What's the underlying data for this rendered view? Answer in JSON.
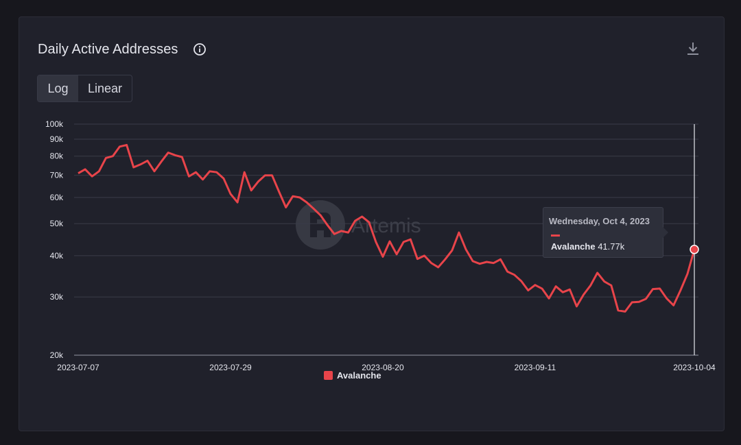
{
  "header": {
    "title": "Daily Active Addresses",
    "info_icon": "info-circle-icon",
    "download_icon": "download-icon"
  },
  "scale_toggle": {
    "options": [
      "Log",
      "Linear"
    ],
    "selected": "Log"
  },
  "watermark": "Artemis",
  "tooltip": {
    "date": "Wednesday, Oct 4, 2023",
    "series_name": "Avalanche",
    "value_text": "41.77k"
  },
  "colors": {
    "series": "#e8444a",
    "background": "#20212b",
    "grid": "#3a3c48"
  },
  "chart_data": {
    "type": "line",
    "title": "Daily Active Addresses",
    "yscale": "log",
    "ylim": [
      20000,
      100000
    ],
    "y_ticks": [
      {
        "value": 100000,
        "label": "100k"
      },
      {
        "value": 90000,
        "label": "90k"
      },
      {
        "value": 80000,
        "label": "80k"
      },
      {
        "value": 70000,
        "label": "70k"
      },
      {
        "value": 60000,
        "label": "60k"
      },
      {
        "value": 50000,
        "label": "50k"
      },
      {
        "value": 40000,
        "label": "40k"
      },
      {
        "value": 30000,
        "label": "30k"
      },
      {
        "value": 20000,
        "label": "20k"
      }
    ],
    "x_start": "2023-07-07",
    "x_end": "2023-10-04",
    "x_ticks": [
      "2023-07-07",
      "2023-07-29",
      "2023-08-20",
      "2023-09-11",
      "2023-10-04"
    ],
    "grid": true,
    "legend_position": "bottom-center",
    "highlight_index": 89,
    "series": [
      {
        "name": "Avalanche",
        "color": "#e8444a",
        "values": [
          71000,
          73000,
          69500,
          72000,
          79000,
          80000,
          85500,
          86500,
          74000,
          75500,
          77500,
          72000,
          77000,
          82000,
          80500,
          79500,
          69500,
          71500,
          68000,
          72000,
          71500,
          68500,
          61500,
          58000,
          71500,
          63000,
          67000,
          70000,
          70000,
          62500,
          56000,
          60500,
          60000,
          58000,
          55500,
          53000,
          49500,
          46500,
          47500,
          47000,
          51000,
          52500,
          50500,
          44000,
          39700,
          44200,
          40400,
          44000,
          44800,
          39100,
          40000,
          38000,
          36900,
          39000,
          41500,
          47000,
          41800,
          38500,
          37800,
          38300,
          38000,
          39000,
          35800,
          35000,
          33500,
          31400,
          32600,
          31800,
          29700,
          32300,
          31000,
          31600,
          28100,
          30500,
          32500,
          35500,
          33400,
          32500,
          27300,
          27100,
          28900,
          29000,
          29600,
          31700,
          31800,
          29700,
          28300,
          31400,
          35200,
          41770
        ]
      }
    ]
  }
}
